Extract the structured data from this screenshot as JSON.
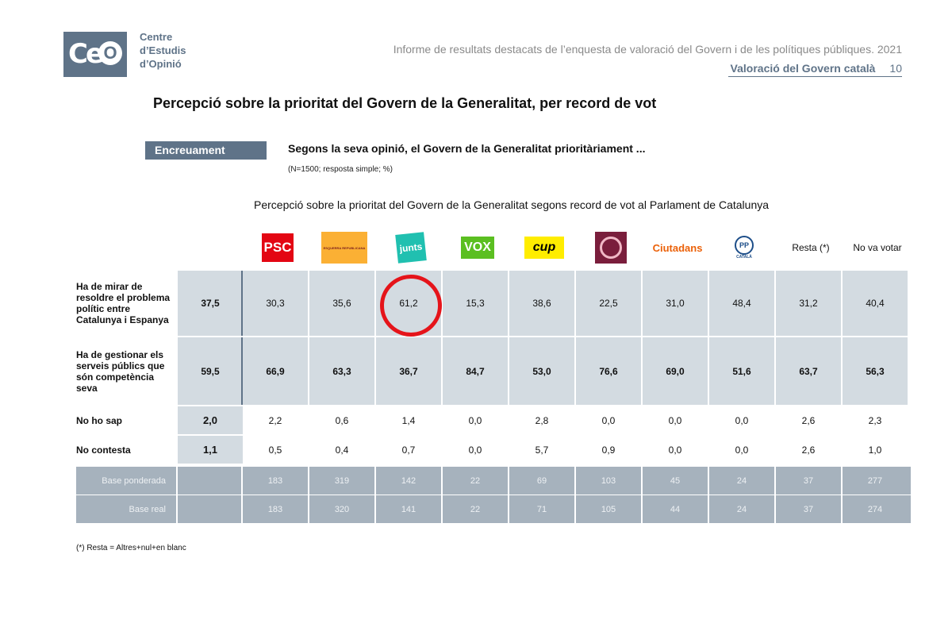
{
  "header": {
    "logo_letters": "Ce",
    "logo_o": "O",
    "org_name": [
      "Centre",
      "d’Estudis",
      "d’Opinió"
    ],
    "report_title": "Informe de resultats destacats de l’enquesta de valoració del Govern i de les polítiques públiques. 2021",
    "section": "Valoració del Govern català",
    "page_number": "10"
  },
  "title": "Percepció sobre la prioritat del Govern de la Generalitat, per record de vot",
  "tag": "Encreuament",
  "question": "Segons la seva opinió, el Govern de la Generalitat prioritàriament ...",
  "question_note": "(N=1500; resposta simple; %)",
  "table_title": "Percepció sobre la prioritat del Govern de la Generalitat segons record de vot al Parlament de Catalunya",
  "columns": [
    {
      "label": "",
      "logo": "none"
    },
    {
      "label": "PSC",
      "logo": "psc-logo",
      "color": "#e30613"
    },
    {
      "label": "ESQUERRA REPUBLICANA",
      "logo": "erc-logo",
      "color": "#fbb034"
    },
    {
      "label": "junts",
      "logo": "junts-logo",
      "color": "#20c0b0"
    },
    {
      "label": "VOX",
      "logo": "vox-logo",
      "color": "#5bbf21"
    },
    {
      "label": "cup",
      "logo": "cup-logo",
      "color": "#ffed00"
    },
    {
      "label": "",
      "logo": "comuns-logo",
      "color": "#7a1e3c"
    },
    {
      "label": "Ciutadans",
      "logo": "cs-logo",
      "color": "#eb6109"
    },
    {
      "label": "CATALÀ",
      "logo": "pp-logo",
      "color": "#1d4e89"
    },
    {
      "label": "Resta",
      "logo": "text",
      "suffix": "(*)"
    },
    {
      "label": "No va votar",
      "logo": "text"
    }
  ],
  "rows": [
    {
      "label": "Ha de mirar de resoldre el problema polític entre Catalunya i Espanya",
      "values": [
        "37,5",
        "30,3",
        "35,6",
        "61,2",
        "15,3",
        "38,6",
        "22,5",
        "31,0",
        "48,4",
        "31,2",
        "40,4"
      ]
    },
    {
      "label": "Ha de gestionar els serveis públics que són competència seva",
      "values": [
        "59,5",
        "66,9",
        "63,3",
        "36,7",
        "84,7",
        "53,0",
        "76,6",
        "69,0",
        "51,6",
        "63,7",
        "56,3"
      ]
    },
    {
      "label": "No ho sap",
      "values": [
        "2,0",
        "2,2",
        "0,6",
        "1,4",
        "0,0",
        "2,8",
        "0,0",
        "0,0",
        "0,0",
        "2,6",
        "2,3"
      ]
    },
    {
      "label": "No contesta",
      "values": [
        "1,1",
        "0,5",
        "0,4",
        "0,7",
        "0,0",
        "5,7",
        "0,9",
        "0,0",
        "0,0",
        "2,6",
        "1,0"
      ]
    }
  ],
  "base_rows": [
    {
      "label": "Base ponderada",
      "values": [
        "",
        "183",
        "319",
        "142",
        "22",
        "69",
        "103",
        "45",
        "24",
        "37",
        "277"
      ]
    },
    {
      "label": "Base real",
      "values": [
        "",
        "183",
        "320",
        "141",
        "22",
        "71",
        "105",
        "44",
        "24",
        "37",
        "274"
      ]
    }
  ],
  "highlight": {
    "row": 0,
    "col": 3,
    "color": "#e5141a"
  },
  "footnote": "(*) Resta = Altres+nul+en blanc"
}
